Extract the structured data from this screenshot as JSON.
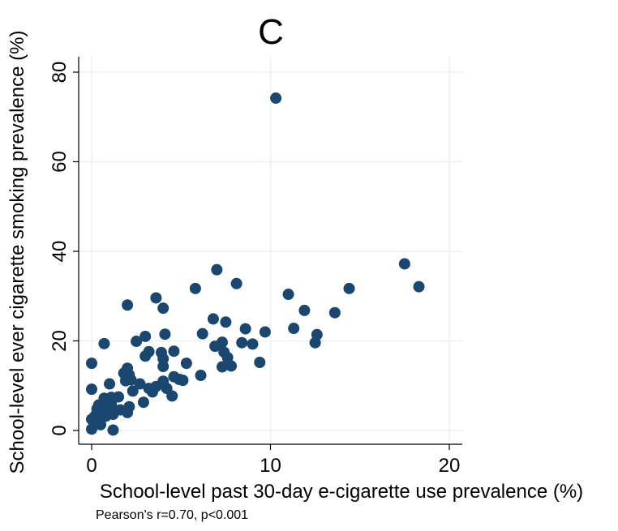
{
  "chart_data": {
    "type": "scatter",
    "title": "C",
    "xlabel": "School-level past 30-day e-cigarette use prevalence (%)",
    "ylabel": "School-level ever cigarette smoking prevalence (%)",
    "xlim": [
      0,
      20
    ],
    "ylim": [
      0,
      80
    ],
    "xticks": [
      "0",
      "10",
      "20"
    ],
    "yticks": [
      "0",
      "20",
      "40",
      "60",
      "80"
    ],
    "grid": true,
    "note": "Pearson's r=0.70, p<0.001",
    "point_color": "#1a476f",
    "points": [
      [
        10.3,
        74.2
      ],
      [
        17.5,
        37.2
      ],
      [
        18.3,
        32.1
      ],
      [
        14.4,
        31.7
      ],
      [
        13.6,
        26.3
      ],
      [
        11.9,
        26.8
      ],
      [
        11.0,
        30.4
      ],
      [
        11.3,
        22.8
      ],
      [
        12.6,
        21.4
      ],
      [
        12.5,
        19.6
      ],
      [
        9.7,
        22.0
      ],
      [
        9.4,
        15.2
      ],
      [
        9.0,
        19.3
      ],
      [
        8.6,
        22.7
      ],
      [
        8.4,
        19.6
      ],
      [
        8.1,
        32.8
      ],
      [
        7.0,
        35.9
      ],
      [
        7.5,
        24.2
      ],
      [
        6.8,
        24.9
      ],
      [
        7.3,
        19.7
      ],
      [
        6.9,
        18.8
      ],
      [
        7.6,
        16.3
      ],
      [
        7.4,
        17.5
      ],
      [
        7.8,
        14.4
      ],
      [
        7.3,
        14.2
      ],
      [
        6.2,
        21.6
      ],
      [
        5.8,
        31.7
      ],
      [
        6.1,
        12.3
      ],
      [
        5.3,
        15.0
      ],
      [
        3.6,
        29.6
      ],
      [
        4.0,
        27.3
      ],
      [
        2.0,
        28.0
      ],
      [
        4.1,
        21.5
      ],
      [
        3.0,
        21.0
      ],
      [
        2.5,
        19.9
      ],
      [
        0.7,
        19.4
      ],
      [
        0.0,
        15.0
      ],
      [
        4.6,
        17.7
      ],
      [
        3.9,
        17.4
      ],
      [
        3.2,
        17.6
      ],
      [
        3.0,
        16.6
      ],
      [
        4.0,
        16.0
      ],
      [
        4.0,
        14.3
      ],
      [
        2.0,
        13.9
      ],
      [
        1.8,
        12.8
      ],
      [
        2.1,
        12.4
      ],
      [
        2.2,
        11.3
      ],
      [
        1.9,
        11.1
      ],
      [
        2.7,
        10.4
      ],
      [
        4.6,
        12.0
      ],
      [
        4.9,
        11.4
      ],
      [
        5.1,
        11.2
      ],
      [
        4.0,
        11.0
      ],
      [
        3.6,
        9.8
      ],
      [
        3.2,
        9.4
      ],
      [
        4.2,
        9.4
      ],
      [
        3.4,
        8.6
      ],
      [
        2.3,
        8.8
      ],
      [
        1.0,
        10.4
      ],
      [
        0.0,
        9.2
      ],
      [
        1.5,
        7.5
      ],
      [
        2.1,
        5.3
      ],
      [
        2.0,
        4.0
      ],
      [
        2.9,
        6.3
      ],
      [
        4.5,
        7.7
      ],
      [
        1.1,
        7.4
      ],
      [
        0.7,
        7.2
      ],
      [
        0.4,
        5.7
      ],
      [
        0.3,
        4.8
      ],
      [
        0.9,
        4.9
      ],
      [
        1.2,
        3.6
      ],
      [
        0.5,
        2.8
      ],
      [
        0.0,
        2.5
      ],
      [
        0.3,
        2.1
      ],
      [
        0.5,
        1.3
      ],
      [
        0.0,
        0.3
      ],
      [
        1.2,
        0.1
      ],
      [
        0.6,
        4.3
      ],
      [
        1.6,
        4.6
      ],
      [
        0.8,
        3.2
      ],
      [
        1.1,
        5.9
      ],
      [
        0.2,
        3.3
      ]
    ]
  }
}
